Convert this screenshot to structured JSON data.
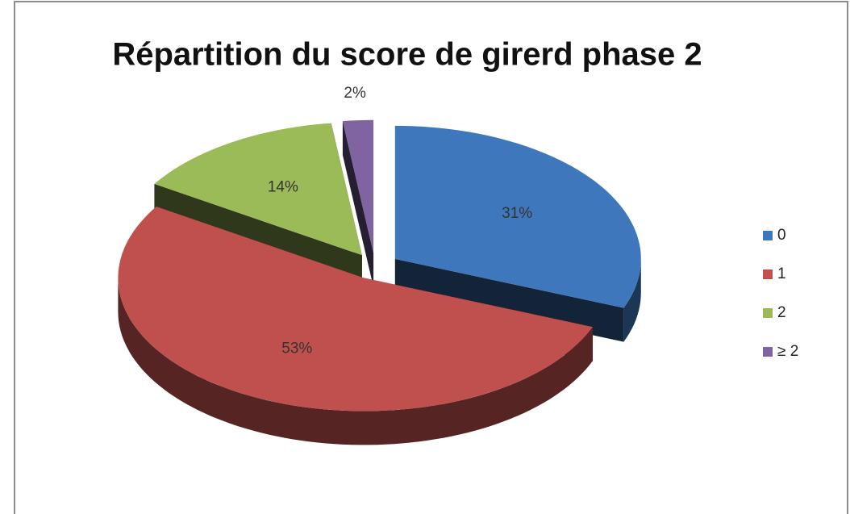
{
  "chart_data": {
    "type": "pie",
    "title": "Répartition du score de girerd phase 2",
    "categories": [
      "0",
      "1",
      "2",
      "≥ 2"
    ],
    "values": [
      31,
      53,
      14,
      2
    ],
    "value_labels": [
      "31%",
      "53%",
      "14%",
      "2%"
    ],
    "colors": [
      "#3f77bc",
      "#c0504d",
      "#9bbb59",
      "#8064a2"
    ],
    "legend": "right"
  }
}
